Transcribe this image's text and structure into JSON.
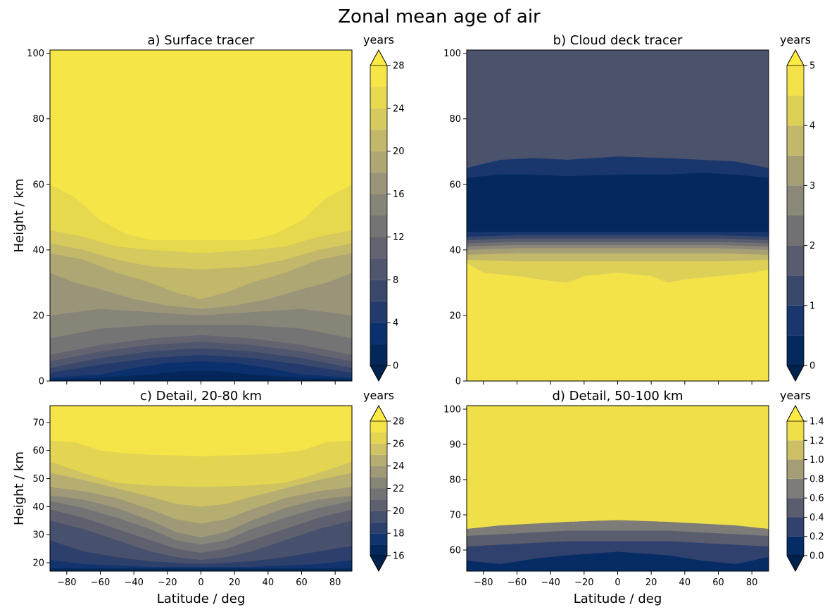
{
  "figure": {
    "title": "Zonal mean age of air"
  },
  "chart_data": [
    {
      "id": "a",
      "type": "heatmap",
      "title": "a) Surface tracer",
      "ylabel": "Height / km",
      "xlabel": "",
      "xlim": [
        -90,
        90
      ],
      "ylim": [
        0,
        101
      ],
      "xticks": [
        -80,
        -60,
        -40,
        -20,
        0,
        20,
        40,
        60,
        80
      ],
      "yticks": [
        0,
        20,
        40,
        60,
        80,
        100
      ],
      "colorbar": {
        "label": "years",
        "levels": [
          0,
          2,
          4,
          6,
          8,
          10,
          12,
          14,
          16,
          18,
          20,
          22,
          24,
          26,
          28
        ],
        "ticks": [
          0,
          4,
          8,
          12,
          16,
          20,
          24,
          28
        ],
        "extend": "both"
      },
      "contour_lines": [
        {
          "level": 2,
          "x": [
            -90,
            -60,
            -30,
            -10,
            10,
            30,
            60,
            90
          ],
          "y": [
            0.5,
            1,
            2,
            3,
            3,
            2,
            1,
            0.5
          ]
        },
        {
          "level": 4,
          "x": [
            -90,
            -60,
            -40,
            -20,
            0,
            20,
            40,
            60,
            90
          ],
          "y": [
            1,
            2,
            4,
            5.5,
            6,
            5.5,
            4,
            2,
            1
          ]
        },
        {
          "level": 6,
          "x": [
            -90,
            -60,
            -30,
            0,
            30,
            60,
            90
          ],
          "y": [
            2.5,
            5,
            7,
            8,
            7,
            5,
            2.5
          ]
        },
        {
          "level": 8,
          "x": [
            -90,
            -60,
            -30,
            0,
            30,
            60,
            90
          ],
          "y": [
            4,
            7,
            9,
            10,
            9,
            7,
            4
          ]
        },
        {
          "level": 10,
          "x": [
            -90,
            -60,
            -30,
            0,
            30,
            60,
            90
          ],
          "y": [
            6,
            9,
            11,
            12,
            11,
            9,
            6
          ]
        },
        {
          "level": 12,
          "x": [
            -90,
            -60,
            -30,
            0,
            30,
            60,
            90
          ],
          "y": [
            8,
            11,
            13,
            14,
            13,
            11,
            8
          ]
        },
        {
          "level": 14,
          "x": [
            -90,
            -60,
            -30,
            0,
            30,
            60,
            90
          ],
          "y": [
            13,
            16,
            17,
            17,
            17,
            16,
            13
          ]
        },
        {
          "level": 16,
          "x": [
            -90,
            -60,
            -30,
            0,
            30,
            60,
            90
          ],
          "y": [
            20,
            22,
            21,
            20,
            21,
            22,
            20
          ]
        },
        {
          "level": 18,
          "x": [
            -90,
            -75,
            -60,
            -40,
            -20,
            0,
            20,
            40,
            60,
            75,
            90
          ],
          "y": [
            33,
            30,
            28,
            25,
            23,
            22,
            23,
            25,
            28,
            30,
            33
          ]
        },
        {
          "level": 20,
          "x": [
            -90,
            -70,
            -50,
            -30,
            -15,
            0,
            15,
            30,
            50,
            70,
            90
          ],
          "y": [
            39,
            37,
            33,
            30,
            27,
            25,
            27,
            30,
            33,
            37,
            39
          ]
        },
        {
          "level": 22,
          "x": [
            -90,
            -70,
            -50,
            -30,
            0,
            30,
            50,
            70,
            90
          ],
          "y": [
            42,
            40,
            37,
            35,
            34,
            35,
            37,
            40,
            42
          ]
        },
        {
          "level": 24,
          "x": [
            -90,
            -70,
            -50,
            -30,
            0,
            30,
            50,
            70,
            90
          ],
          "y": [
            46,
            44,
            41,
            40,
            39,
            40,
            41,
            44,
            46
          ]
        },
        {
          "level": 26,
          "x": [
            -90,
            -75,
            -60,
            -45,
            -30,
            0,
            30,
            45,
            60,
            75,
            90
          ],
          "y": [
            60,
            56,
            49,
            45,
            43,
            43,
            43,
            45,
            49,
            56,
            60
          ]
        }
      ]
    },
    {
      "id": "b",
      "type": "heatmap",
      "title": "b) Cloud deck tracer",
      "ylabel": "",
      "xlabel": "",
      "xlim": [
        -90,
        90
      ],
      "ylim": [
        0,
        101
      ],
      "xticks": [
        -80,
        -60,
        -40,
        -20,
        0,
        20,
        40,
        60,
        80
      ],
      "yticks": [
        0,
        20,
        40,
        60,
        80,
        100
      ],
      "colorbar": {
        "label": "years",
        "levels": [
          0,
          0.5,
          1,
          1.5,
          2,
          2.5,
          3,
          3.5,
          4,
          4.5,
          5
        ],
        "ticks": [
          0,
          1,
          2,
          3,
          4,
          5
        ],
        "extend": "both"
      },
      "contour_lines": [
        {
          "level": 0.5,
          "x": [
            -90,
            -60,
            -30,
            0,
            30,
            60,
            90
          ],
          "y": [
            45.5,
            45.5,
            45.5,
            45.5,
            45.5,
            45.5,
            45.5
          ]
        },
        {
          "level": 1,
          "x": [
            -90,
            -60,
            -30,
            0,
            30,
            60,
            90
          ],
          "y": [
            44,
            44.5,
            44.5,
            44.5,
            44.5,
            44.5,
            44
          ]
        },
        {
          "level": 1.5,
          "x": [
            -90,
            -60,
            -30,
            0,
            30,
            60,
            90
          ],
          "y": [
            43,
            43.5,
            43.5,
            43.5,
            43.5,
            43.5,
            43
          ]
        },
        {
          "level": 2,
          "x": [
            -90,
            -60,
            -30,
            0,
            30,
            60,
            90
          ],
          "y": [
            42,
            42.5,
            42.5,
            42.5,
            42.5,
            42.5,
            42
          ]
        },
        {
          "level": 2.5,
          "x": [
            -90,
            -60,
            -30,
            0,
            30,
            60,
            90
          ],
          "y": [
            41,
            41.5,
            41.5,
            41.5,
            41.5,
            41.5,
            41
          ]
        },
        {
          "level": 3,
          "x": [
            -90,
            -60,
            -30,
            0,
            30,
            60,
            90
          ],
          "y": [
            40,
            40.5,
            40.5,
            40.5,
            40.5,
            40.5,
            40
          ]
        },
        {
          "level": 3.5,
          "x": [
            -90,
            -60,
            -30,
            0,
            30,
            60,
            90
          ],
          "y": [
            38.5,
            39,
            39,
            39,
            39,
            39,
            38.5
          ]
        },
        {
          "level": 4,
          "x": [
            -90,
            -60,
            -30,
            0,
            30,
            60,
            90
          ],
          "y": [
            37,
            36.5,
            36.5,
            36.5,
            36.5,
            36.5,
            37
          ]
        },
        {
          "level": 4.5,
          "x": [
            -90,
            -80,
            -60,
            -40,
            -30,
            -20,
            0,
            20,
            25,
            30,
            40,
            60,
            80,
            90
          ],
          "y": [
            36,
            33,
            32,
            30.5,
            30,
            32,
            33,
            32,
            31,
            30,
            31,
            32,
            33,
            34
          ]
        },
        {
          "level": 1,
          "kind": "upper",
          "x": [
            -90,
            -70,
            -50,
            -30,
            0,
            30,
            50,
            70,
            90
          ],
          "y": [
            62,
            63,
            63,
            62.5,
            63,
            63,
            63.5,
            63,
            62
          ]
        },
        {
          "level": 0.5,
          "kind": "upper2",
          "x": [
            -90,
            -70,
            -50,
            -30,
            0,
            30,
            50,
            70,
            90
          ],
          "y": [
            65,
            67.5,
            68,
            67.5,
            68.5,
            68,
            67.5,
            67,
            65
          ]
        }
      ]
    },
    {
      "id": "c",
      "type": "heatmap",
      "title": "c) Detail, 20-80 km",
      "ylabel": "Height / km",
      "xlabel": "Latitude / deg",
      "xlim": [
        -90,
        90
      ],
      "ylim": [
        17,
        76
      ],
      "xticks": [
        -80,
        -60,
        -40,
        -20,
        0,
        20,
        40,
        60,
        80
      ],
      "yticks": [
        20,
        30,
        40,
        50,
        60,
        70
      ],
      "colorbar": {
        "label": "years",
        "levels": [
          16,
          17,
          18,
          19,
          20,
          21,
          22,
          23,
          24,
          25,
          26,
          27,
          28
        ],
        "ticks": [
          16,
          18,
          20,
          22,
          24,
          26,
          28
        ],
        "extend": "both"
      },
      "contour_lines": [
        {
          "level": 17,
          "x": [
            -90,
            -60,
            -30,
            0,
            30,
            60,
            90
          ],
          "y": [
            18,
            18,
            18,
            18,
            18,
            18,
            18
          ]
        },
        {
          "level": 18,
          "x": [
            -90,
            -70,
            -50,
            -30,
            0,
            30,
            50,
            70,
            90
          ],
          "y": [
            21,
            19.5,
            19,
            18.5,
            18.5,
            18.5,
            19,
            19.5,
            21
          ]
        },
        {
          "level": 19,
          "x": [
            -90,
            -70,
            -50,
            -30,
            -15,
            0,
            15,
            30,
            50,
            70,
            90
          ],
          "y": [
            28,
            24,
            22,
            20.5,
            20,
            19.5,
            20,
            20.5,
            22,
            24,
            26
          ]
        },
        {
          "level": 20,
          "x": [
            -90,
            -70,
            -50,
            -30,
            -15,
            0,
            15,
            30,
            50,
            70,
            90
          ],
          "y": [
            35,
            32,
            28,
            24,
            22,
            21,
            22,
            24,
            28,
            32,
            35
          ]
        },
        {
          "level": 21,
          "x": [
            -90,
            -70,
            -50,
            -30,
            -15,
            0,
            15,
            30,
            50,
            70,
            90
          ],
          "y": [
            39,
            36,
            32,
            28,
            25,
            23.5,
            25,
            28,
            32,
            36,
            39
          ]
        },
        {
          "level": 22,
          "x": [
            -90,
            -70,
            -50,
            -30,
            -15,
            0,
            15,
            30,
            50,
            70,
            90
          ],
          "y": [
            42,
            39.5,
            36,
            32,
            28,
            26.5,
            28,
            32,
            36,
            39.5,
            42
          ]
        },
        {
          "level": 23,
          "x": [
            -90,
            -70,
            -50,
            -30,
            -15,
            0,
            15,
            30,
            50,
            70,
            90
          ],
          "y": [
            44,
            42.5,
            39.5,
            35,
            31,
            29,
            31,
            35,
            39.5,
            42.5,
            44
          ]
        },
        {
          "level": 24,
          "x": [
            -90,
            -70,
            -50,
            -30,
            -15,
            0,
            15,
            30,
            50,
            70,
            90
          ],
          "y": [
            47,
            45.5,
            43,
            39,
            35.5,
            34,
            35.5,
            39,
            43,
            45.5,
            47
          ]
        },
        {
          "level": 25,
          "x": [
            -90,
            -70,
            -50,
            -30,
            -15,
            0,
            15,
            30,
            50,
            70,
            90
          ],
          "y": [
            52,
            49.5,
            46.5,
            43.5,
            41,
            40,
            41,
            43.5,
            46.5,
            49.5,
            52
          ]
        },
        {
          "level": 26,
          "x": [
            -90,
            -80,
            -65,
            -50,
            -30,
            0,
            30,
            50,
            65,
            80,
            90
          ],
          "y": [
            56,
            54,
            51,
            48.5,
            47.5,
            47,
            47.5,
            48.5,
            51,
            54,
            56
          ]
        },
        {
          "level": 27,
          "x": [
            -90,
            -75,
            -60,
            -45,
            -30,
            0,
            30,
            45,
            60,
            75,
            90
          ],
          "y": [
            63.5,
            63,
            60,
            59,
            58.5,
            58,
            58.5,
            59,
            60,
            63,
            63.5
          ]
        }
      ]
    },
    {
      "id": "d",
      "type": "heatmap",
      "title": "d) Detail, 50-100 km",
      "ylabel": "",
      "xlabel": "Latitude / deg",
      "xlim": [
        -90,
        90
      ],
      "ylim": [
        54,
        101
      ],
      "xticks": [
        -80,
        -60,
        -40,
        -20,
        0,
        20,
        40,
        60,
        80
      ],
      "yticks": [
        60,
        70,
        80,
        90,
        100
      ],
      "colorbar": {
        "label": "years",
        "levels": [
          0.0,
          0.2,
          0.4,
          0.6,
          0.8,
          1.0,
          1.2,
          1.4
        ],
        "ticks": [
          0.0,
          0.2,
          0.4,
          0.6,
          0.8,
          1.0,
          1.2,
          1.4
        ],
        "extend": "both"
      },
      "contour_lines": [
        {
          "level": 0.2,
          "x": [
            -90,
            -70,
            -50,
            -30,
            0,
            30,
            50,
            70,
            90
          ],
          "y": [
            57,
            56,
            57.5,
            58.5,
            59.5,
            58.5,
            57,
            56,
            58
          ]
        },
        {
          "level": 0.4,
          "x": [
            -90,
            -70,
            -50,
            -30,
            0,
            30,
            50,
            70,
            90
          ],
          "y": [
            61,
            61.5,
            62,
            62.5,
            62.5,
            62.5,
            62,
            61.5,
            61
          ]
        },
        {
          "level": 0.6,
          "x": [
            -90,
            -70,
            -50,
            -30,
            0,
            30,
            50,
            70,
            90
          ],
          "y": [
            64,
            64.5,
            65,
            65.5,
            65.5,
            65.5,
            65,
            64.5,
            64
          ]
        },
        {
          "level": 0.8,
          "x": [
            -90,
            -70,
            -50,
            -30,
            0,
            30,
            50,
            70,
            90
          ],
          "y": [
            66,
            67,
            67.5,
            68,
            68.5,
            68,
            67.5,
            67,
            66
          ]
        }
      ]
    }
  ]
}
